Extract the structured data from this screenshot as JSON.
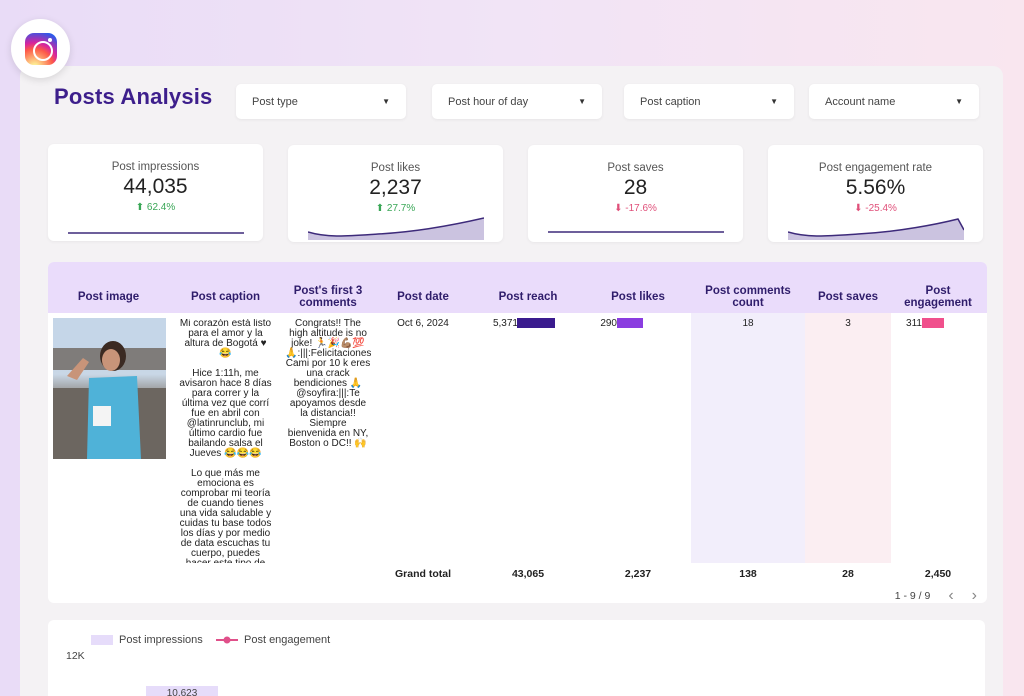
{
  "title": "Posts Analysis",
  "filters": [
    {
      "label": "Post type"
    },
    {
      "label": "Post hour of day"
    },
    {
      "label": "Post caption"
    },
    {
      "label": "Account name"
    }
  ],
  "kpis": [
    {
      "label": "Post impressions",
      "value": "44,035",
      "delta": "62.4%",
      "direction": "up"
    },
    {
      "label": "Post likes",
      "value": "2,237",
      "delta": "27.7%",
      "direction": "up"
    },
    {
      "label": "Post saves",
      "value": "28",
      "delta": "-17.6%",
      "direction": "down"
    },
    {
      "label": "Post engagement rate",
      "value": "5.56%",
      "delta": "-25.4%",
      "direction": "down"
    }
  ],
  "table": {
    "columns": [
      "Post image",
      "Post caption",
      "Post's first 3 comments",
      "Post date",
      "Post reach",
      "Post likes",
      "Post comments count",
      "Post saves",
      "Post engagement"
    ],
    "row": {
      "caption_lines": [
        "Mi corazón está listo",
        "para el amor y la",
        "altura de Bogotá ♥",
        "😂",
        "",
        "Hice 1:11h, me",
        "avisaron hace 8 días",
        "para correr y la",
        "última vez que corrí",
        "fue en abril con",
        "@latinrunclub, mi",
        "último cardio fue",
        "bailando salsa el",
        "Jueves 😂😂😂",
        "",
        "Lo que más me",
        "emociona es",
        "comprobar mi teoría",
        "de cuando tienes",
        "una vida saludable y",
        "cuidas tu base todos",
        "los días y por medio",
        "de data escuchas tu",
        "cuerpo, puedes",
        "hacer este tipo de"
      ],
      "comments_lines": [
        "Congrats!! The",
        "high altitude is no",
        "joke! 🏃🎉💪🏽💯",
        "🙏:|||:Felicitaciones",
        "Cami por 10 k eres",
        "una crack",
        "bendiciones 🙏",
        "@soyfira:|||:Te",
        "apoyamos desde",
        "la distancia!!",
        "Siempre",
        "bienvenida en NY,",
        "Boston o DC!! 🙌"
      ],
      "date": "Oct 6, 2024",
      "reach": "5,371",
      "likes": "290",
      "comments": "18",
      "saves": "3",
      "engagement": "311"
    },
    "totals": {
      "label": "Grand total",
      "reach": "43,065",
      "likes": "2,237",
      "comments": "138",
      "saves": "28",
      "engagement": "2,450"
    },
    "pager": "1 - 9 / 9"
  },
  "chart": {
    "legend": [
      "Post impressions",
      "Post engagement"
    ],
    "y_tick_top": "12K",
    "bar_label": "10,623"
  },
  "colors": {
    "title": "#3d1f8c",
    "reach_bar": "#3a1b8e",
    "likes_bar": "#8a3de0",
    "engagement_bar": "#f0508c",
    "comments_col": "#f2eefb",
    "saves_col": "#fbeef2"
  }
}
